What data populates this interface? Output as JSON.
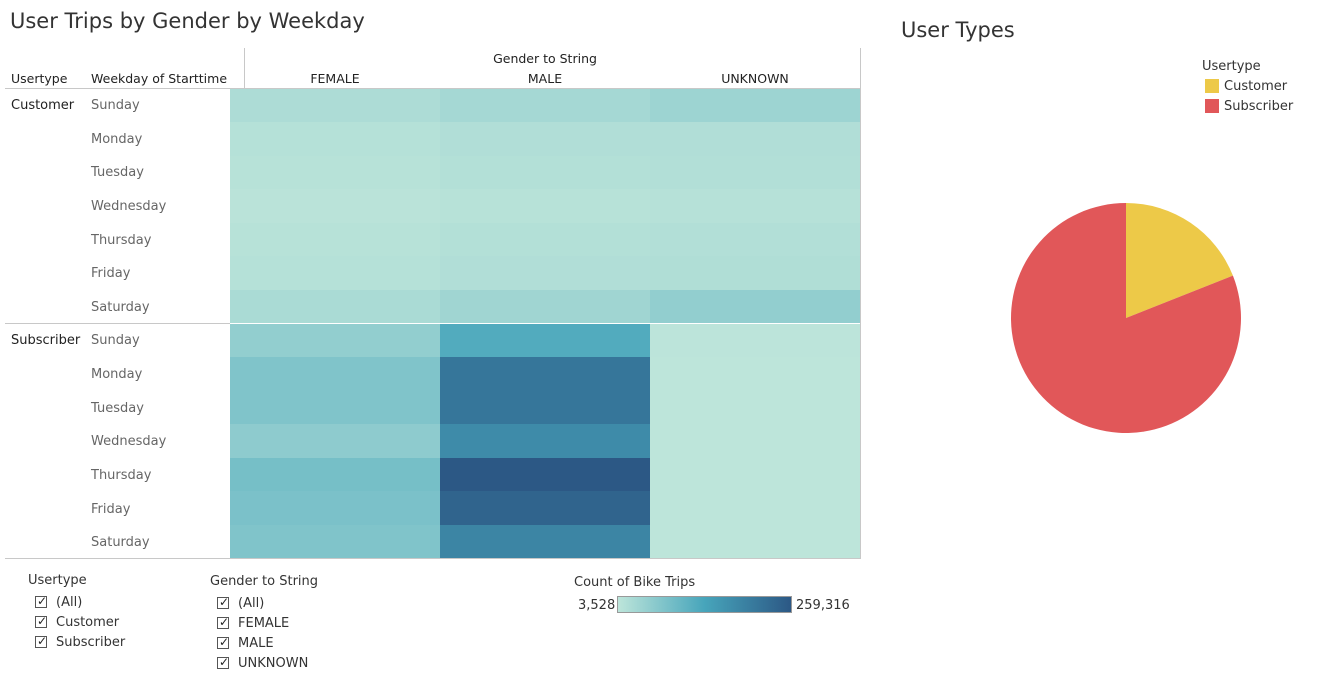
{
  "heatmap": {
    "title": "User Trips by Gender by Weekday",
    "header_usertype": "Usertype",
    "header_weekday": "Weekday of Starttime",
    "header_gender": "Gender to String",
    "columns": [
      "FEMALE",
      "MALE",
      "UNKNOWN"
    ],
    "groups": [
      {
        "label": "Customer",
        "days": [
          "Sunday",
          "Monday",
          "Tuesday",
          "Wednesday",
          "Thursday",
          "Friday",
          "Saturday"
        ]
      },
      {
        "label": "Subscriber",
        "days": [
          "Sunday",
          "Monday",
          "Tuesday",
          "Wednesday",
          "Thursday",
          "Friday",
          "Saturday"
        ]
      }
    ]
  },
  "chart_data": [
    {
      "type": "heatmap",
      "title": "User Trips by Gender by Weekday",
      "x": [
        "FEMALE",
        "MALE",
        "UNKNOWN"
      ],
      "y": [
        "Customer / Sunday",
        "Customer / Monday",
        "Customer / Tuesday",
        "Customer / Wednesday",
        "Customer / Thursday",
        "Customer / Friday",
        "Customer / Saturday",
        "Subscriber / Sunday",
        "Subscriber / Monday",
        "Subscriber / Tuesday",
        "Subscriber / Wednesday",
        "Subscriber / Thursday",
        "Subscriber / Friday",
        "Subscriber / Saturday"
      ],
      "values": [
        [
          21000,
          30000,
          38000
        ],
        [
          12000,
          17000,
          17000
        ],
        [
          10000,
          14000,
          15000
        ],
        [
          7000,
          10000,
          11000
        ],
        [
          10000,
          14000,
          15000
        ],
        [
          12000,
          17000,
          18000
        ],
        [
          24000,
          35000,
          50000
        ],
        [
          50000,
          120000,
          5000
        ],
        [
          70000,
          210000,
          4000
        ],
        [
          70000,
          210000,
          4000
        ],
        [
          55000,
          175000,
          4000
        ],
        [
          80000,
          259316,
          4000
        ],
        [
          75000,
          240000,
          4000
        ],
        [
          70000,
          185000,
          4000
        ]
      ],
      "colorbar": {
        "label": "Count of Bike Trips",
        "min": 3528,
        "max": 259316,
        "min_label": "3,528",
        "max_label": "259,316",
        "colors": [
          "#bde5da",
          "#47a5bb",
          "#2c5885"
        ]
      }
    },
    {
      "type": "pie",
      "title": "User Types",
      "labels": [
        "Customer",
        "Subscriber"
      ],
      "values": [
        19,
        81
      ],
      "colors": [
        "#edc948",
        "#e15759"
      ],
      "legend_title": "Usertype",
      "legend_position": "top-right"
    }
  ],
  "filters": [
    {
      "title": "Usertype",
      "options": [
        "(All)",
        "Customer",
        "Subscriber"
      ]
    },
    {
      "title": "Gender to String",
      "options": [
        "(All)",
        "FEMALE",
        "MALE",
        "UNKNOWN"
      ]
    }
  ],
  "check_glyph": "✓"
}
